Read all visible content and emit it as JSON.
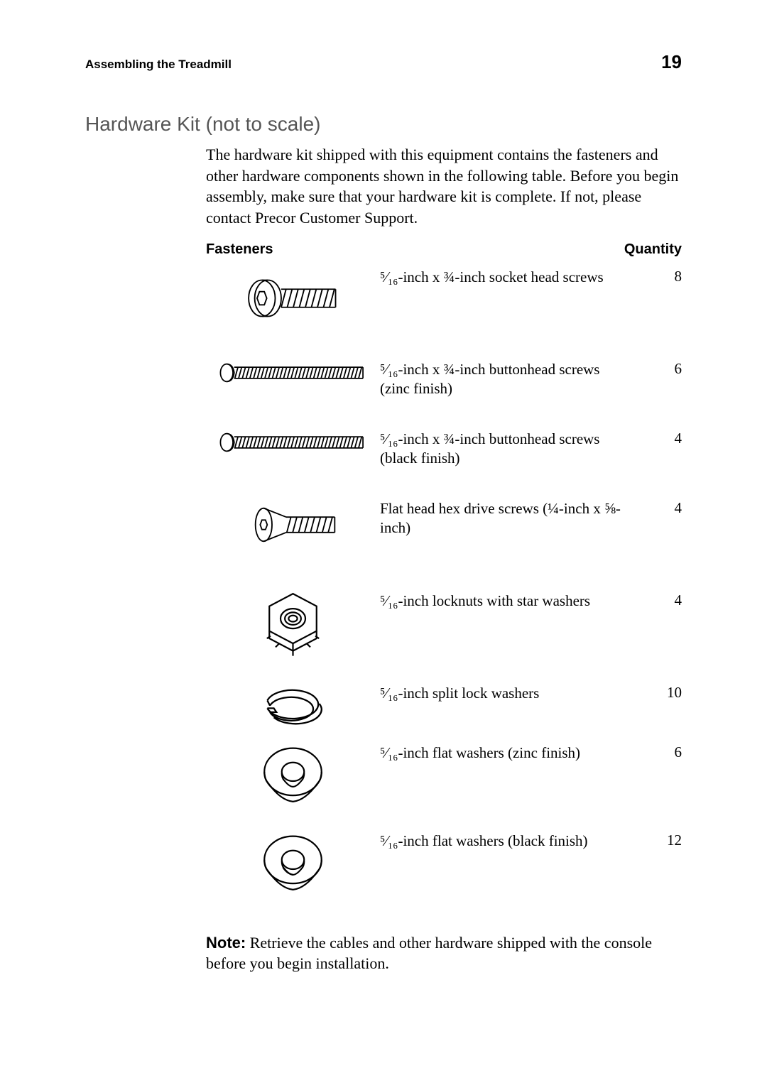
{
  "page": {
    "running_head": "Assembling the Treadmill",
    "page_number": "19",
    "section_title": "Hardware Kit (not to scale)",
    "intro": "The hardware kit shipped with this equipment contains the fasteners and other hardware components shown in the following table. Before you begin assembly, make sure that your hardware kit is complete. If not, please contact Precor Customer Support.",
    "note_label": "Note:",
    "note_body": " Retrieve the cables and other hardware shipped with the console before you begin installation."
  },
  "table": {
    "head_left": "Fasteners",
    "head_right": "Quantity",
    "rows": [
      {
        "desc": "⁵⁄₁₆-inch x ¾-inch socket head screws",
        "qty": "8",
        "icon": "socket-head-screw",
        "h": "h-tall"
      },
      {
        "desc": "⁵⁄₁₆-inch x ¾-inch buttonhead screws (zinc finish)",
        "qty": "6",
        "icon": "buttonhead-screw-long",
        "h": "h-med"
      },
      {
        "desc": "⁵⁄₁₆-inch x ¾-inch buttonhead screws (black finish)",
        "qty": "4",
        "icon": "buttonhead-screw-long",
        "h": "h-med"
      },
      {
        "desc": "Flat head hex drive screws (¼-inch x ⅝-inch)",
        "qty": "4",
        "icon": "flathead-screw",
        "h": "h-tall"
      },
      {
        "desc": "⁵⁄₁₆-inch locknuts with star washers",
        "qty": "4",
        "icon": "locknut",
        "h": "h-tall"
      },
      {
        "desc": "⁵⁄₁₆-inch split lock washers",
        "qty": "10",
        "icon": "split-washer",
        "h": "h-short"
      },
      {
        "desc": "⁵⁄₁₆-inch flat washers (zinc finish)",
        "qty": "6",
        "icon": "flat-washer-zinc",
        "h": "h-washer"
      },
      {
        "desc": "⁵⁄₁₆-inch flat washers (black finish)",
        "qty": "12",
        "icon": "flat-washer-black",
        "h": "h-washer"
      }
    ]
  },
  "style": {
    "text_color": "#000000",
    "muted_color": "#555555",
    "background": "#ffffff",
    "body_fontsize": 22,
    "title_fontsize": 28,
    "header_fontsize": 17,
    "pagenum_fontsize": 26,
    "stroke": "#000000",
    "stroke_width": 2
  }
}
